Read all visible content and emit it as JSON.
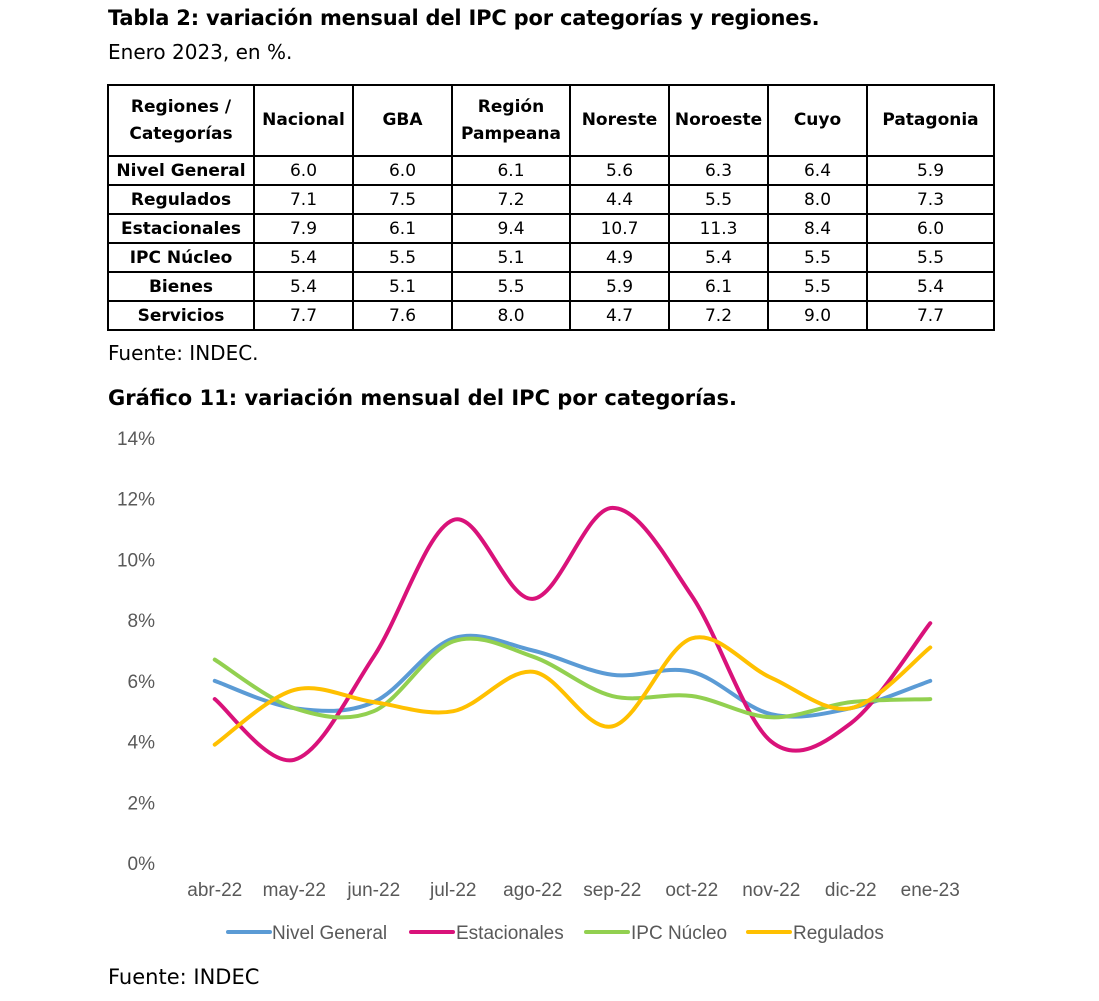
{
  "table": {
    "title": "Tabla 2: variación mensual del IPC por categorías y regiones.",
    "subtitle": "Enero 2023, en %.",
    "header_first": [
      "Regiones /",
      "Categorías"
    ],
    "columns": [
      "Nacional",
      "GBA",
      "Región\nPampeana",
      "Noreste",
      "Noroeste",
      "Cuyo",
      "Patagonia"
    ],
    "rows": [
      {
        "label": "Nivel General",
        "values": [
          "6.0",
          "6.0",
          "6.1",
          "5.6",
          "6.3",
          "6.4",
          "5.9"
        ]
      },
      {
        "label": "Regulados",
        "values": [
          "7.1",
          "7.5",
          "7.2",
          "4.4",
          "5.5",
          "8.0",
          "7.3"
        ]
      },
      {
        "label": "Estacionales",
        "values": [
          "7.9",
          "6.1",
          "9.4",
          "10.7",
          "11.3",
          "8.4",
          "6.0"
        ]
      },
      {
        "label": "IPC Núcleo",
        "values": [
          "5.4",
          "5.5",
          "5.1",
          "4.9",
          "5.4",
          "5.5",
          "5.5"
        ]
      },
      {
        "label": "Bienes",
        "values": [
          "5.4",
          "5.1",
          "5.5",
          "5.9",
          "6.1",
          "5.5",
          "5.4"
        ]
      },
      {
        "label": "Servicios",
        "values": [
          "7.7",
          "7.6",
          "8.0",
          "4.7",
          "7.2",
          "9.0",
          "7.7"
        ]
      }
    ],
    "source": "Fuente: INDEC."
  },
  "chart_title": "Gráfico 11: variación mensual del IPC por categorías.",
  "chart_source": "Fuente: INDEC",
  "chart_data": {
    "type": "line",
    "title": "Gráfico 11: variación mensual del IPC por categorías.",
    "xlabel": "",
    "ylabel": "",
    "categories": [
      "abr-22",
      "may-22",
      "jun-22",
      "jul-22",
      "ago-22",
      "sep-22",
      "oct-22",
      "nov-22",
      "dic-22",
      "ene-23"
    ],
    "y_ticks": [
      "0%",
      "2%",
      "4%",
      "6%",
      "8%",
      "10%",
      "12%",
      "14%"
    ],
    "ylim": [
      0,
      14
    ],
    "grid": false,
    "legend_position": "bottom",
    "series": [
      {
        "name": "Nivel General",
        "color": "#5B9BD5",
        "values": [
          6.0,
          5.1,
          5.3,
          7.4,
          7.0,
          6.2,
          6.3,
          4.9,
          5.1,
          6.0
        ]
      },
      {
        "name": "Estacionales",
        "color": "#D9127A",
        "values": [
          5.4,
          3.4,
          6.8,
          11.3,
          8.7,
          11.7,
          8.8,
          4.0,
          4.6,
          7.9
        ]
      },
      {
        "name": "IPC Núcleo",
        "color": "#92D050",
        "values": [
          6.7,
          5.1,
          5.0,
          7.3,
          6.8,
          5.5,
          5.5,
          4.8,
          5.3,
          5.4
        ]
      },
      {
        "name": "Regulados",
        "color": "#FFC000",
        "values": [
          3.9,
          5.7,
          5.3,
          5.0,
          6.3,
          4.5,
          7.4,
          6.1,
          5.1,
          7.1
        ]
      }
    ]
  }
}
